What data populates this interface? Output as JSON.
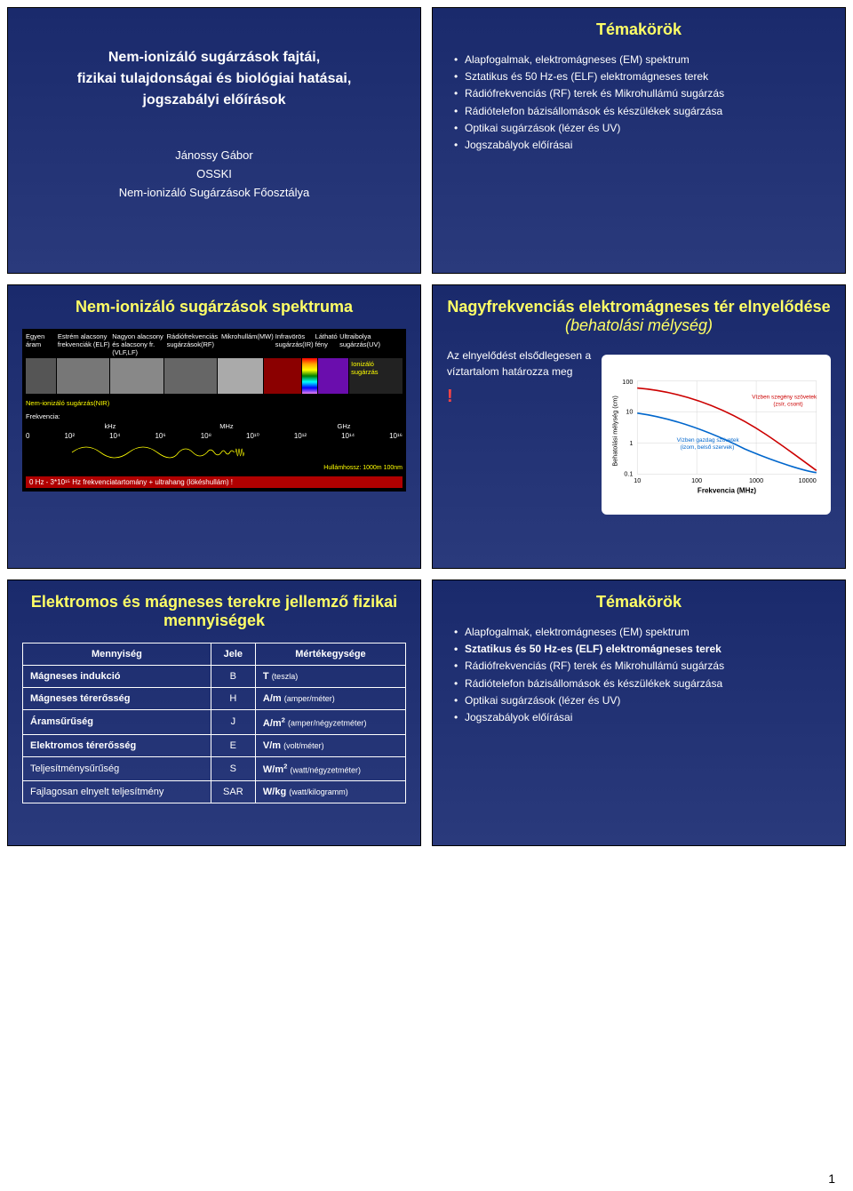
{
  "slide1": {
    "title": "Nem-ionizáló sugárzások fajtái,\nfizikai tulajdonságai és biológiai hatásai,\njogszabályi előírások",
    "author": "Jánossy Gábor",
    "org": "OSSKI",
    "dept": "Nem-ionizáló Sugárzások Főosztálya"
  },
  "slide2": {
    "title": "Témakörök",
    "items": [
      "Alapfogalmak, elektromágneses (EM) spektrum",
      "Sztatikus és 50 Hz-es (ELF) elektromágneses terek",
      "Rádiófrekvenciás (RF) terek és Mikrohullámú sugárzás",
      "Rádiótelefon bázisállomások és készülékek sugárzása",
      "Optikai sugárzások (lézer és UV)",
      "Jogszabályok előírásai"
    ]
  },
  "slide3": {
    "title": "Nem-ionizáló sugárzások spektruma",
    "labels": {
      "egyen": "Egyen áram",
      "elf": "Estrém alacsony frekvenciák (ELF)",
      "vlf": "Nagyon alacsony és alacsony fr. (VLF,LF)",
      "rf": "Rádiófrekvenciás sugárzások(RF)",
      "mw": "Mikrohullám(MW)",
      "ir": "Infravörös sugárzás(IR)",
      "vis": "Látható fény",
      "uv": "Ultraibolya sugárzás(UV)",
      "ion": "Ionizáló sugárzás",
      "nir": "Nem-ionizáló sugárzás(NIR)",
      "freq_label": "Frekvencia:",
      "units": [
        "kHz",
        "MHz",
        "GHz"
      ],
      "ticks": [
        "0",
        "10²",
        "10⁴",
        "10⁶",
        "10⁸",
        "10¹⁰",
        "10¹²",
        "10¹⁴",
        "10¹⁶"
      ],
      "hull": "Hullámhossz:",
      "hull_vals": "1000m    100nm",
      "footer": "0 Hz - 3*10¹⁵ Hz frekvenciatartomány   +   ultrahang (lökéshullám)   !"
    }
  },
  "slide4": {
    "title": "Nagyfrekvenciás elektromágneses tér elnyelődése",
    "subtitle": "(behatolási mélység)",
    "side_text": "Az elnyelődést elsődlegesen a víztartalom határozza meg",
    "bang": "!",
    "chart": {
      "ylabel": "Behatolási mélység (cm)",
      "xlabel": "Frekvencia (MHz)",
      "yticks": [
        "0.1",
        "1",
        "10",
        "100"
      ],
      "xticks": [
        "10",
        "100",
        "1000",
        "10000"
      ],
      "annot1": "Vízben szegény szövetek (zsír, csont)",
      "annot2": "Vízben gazdag szövetek (izom, belső szervek)",
      "colors": {
        "line1": "#cc0000",
        "line2": "#0066cc",
        "grid": "#cccccc"
      }
    }
  },
  "slide5": {
    "title": "Elektromos és mágneses terekre jellemző fizikai mennyiségek",
    "headers": [
      "Mennyiség",
      "Jele",
      "Mértékegysége"
    ],
    "rows": [
      [
        "Mágneses indukció",
        "B",
        "T  (teszla)"
      ],
      [
        "Mágneses térerősség",
        "H",
        "A/m  (amper/méter)"
      ],
      [
        "Áramsűrűség",
        "J",
        "A/m²  (amper/négyzetméter)"
      ],
      [
        "Elektromos térerősség",
        "E",
        "V/m  (volt/méter)"
      ],
      [
        "Teljesítménysűrűség",
        "S",
        "W/m²  (watt/négyzetméter)"
      ],
      [
        "Fajlagosan elnyelt teljesítmény",
        "SAR",
        "W/kg  (watt/kilogramm)"
      ]
    ]
  },
  "slide6": {
    "title": "Témakörök",
    "items": [
      "Alapfogalmak, elektromágneses (EM) spektrum",
      "Sztatikus és 50 Hz-es (ELF) elektromágneses terek",
      "Rádiófrekvenciás (RF) terek és Mikrohullámú sugárzás",
      "Rádiótelefon bázisállomások és készülékek sugárzása",
      "Optikai sugárzások (lézer és UV)",
      "Jogszabályok előírásai"
    ],
    "highlight_index": 1
  },
  "page_num": "1"
}
